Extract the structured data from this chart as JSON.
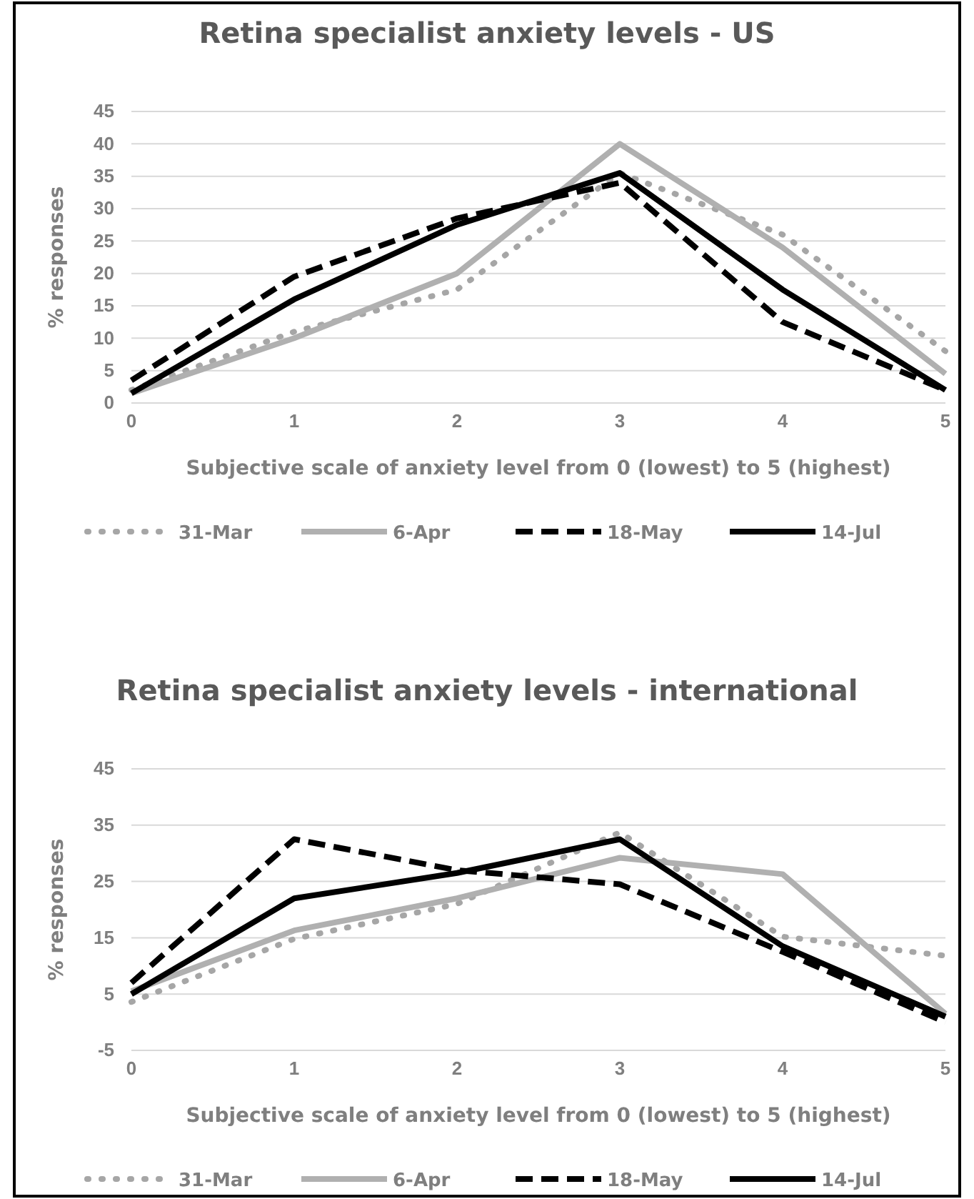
{
  "chart_data": [
    {
      "type": "line",
      "title": "Retina specialist anxiety levels - US",
      "xlabel": "Subjective scale of anxiety level from 0 (lowest) to 5 (highest)",
      "ylabel": "% responses",
      "x": [
        0,
        1,
        2,
        3,
        4,
        5
      ],
      "xlim": [
        0,
        5
      ],
      "xticks": [
        0,
        1,
        2,
        3,
        4,
        5
      ],
      "ylim": [
        0,
        45
      ],
      "yticks": [
        0,
        5,
        10,
        15,
        20,
        25,
        30,
        35,
        40,
        45
      ],
      "grid": "y",
      "legend": "bottom",
      "marker": "none",
      "series": [
        {
          "name": "31-Mar",
          "color": "#a6a6a6",
          "line_style": "dotted",
          "values": [
            2,
            11,
            17.5,
            35.5,
            26,
            8
          ]
        },
        {
          "name": "6-Apr",
          "color": "#b0b0b0",
          "line_style": "solid",
          "values": [
            1.5,
            10,
            20,
            40,
            24,
            4.5
          ]
        },
        {
          "name": "18-May",
          "color": "#000000",
          "line_style": "dashed",
          "values": [
            3.5,
            19.5,
            28.5,
            34,
            12.5,
            2
          ]
        },
        {
          "name": "14-Jul",
          "color": "#000000",
          "line_style": "solid",
          "values": [
            1.5,
            16,
            27.5,
            35.5,
            17.5,
            2
          ]
        }
      ]
    },
    {
      "type": "line",
      "title": "Retina specialist anxiety levels - international",
      "xlabel": "Subjective scale of anxiety level from 0 (lowest) to 5 (highest)",
      "ylabel": "% responses",
      "x": [
        0,
        1,
        2,
        3,
        4,
        5
      ],
      "xlim": [
        0,
        5
      ],
      "xticks": [
        0,
        1,
        2,
        3,
        4,
        5
      ],
      "ylim": [
        -5,
        45
      ],
      "yticks": [
        -5,
        5,
        15,
        25,
        35,
        45
      ],
      "grid": "y",
      "legend": "bottom",
      "marker": "none",
      "series": [
        {
          "name": "31-Mar",
          "color": "#a6a6a6",
          "line_style": "dotted",
          "values": [
            3.6,
            14.8,
            21,
            33.7,
            15.2,
            11.8
          ]
        },
        {
          "name": "6-Apr",
          "color": "#b0b0b0",
          "line_style": "solid",
          "values": [
            5.5,
            16.3,
            22,
            29.2,
            26.3,
            1.5
          ]
        },
        {
          "name": "18-May",
          "color": "#000000",
          "line_style": "dashed",
          "values": [
            7,
            32.5,
            27,
            24.5,
            12.5,
            0
          ]
        },
        {
          "name": "14-Jul",
          "color": "#000000",
          "line_style": "solid",
          "values": [
            5,
            22,
            26.5,
            32.5,
            13.5,
            1
          ]
        }
      ]
    }
  ]
}
